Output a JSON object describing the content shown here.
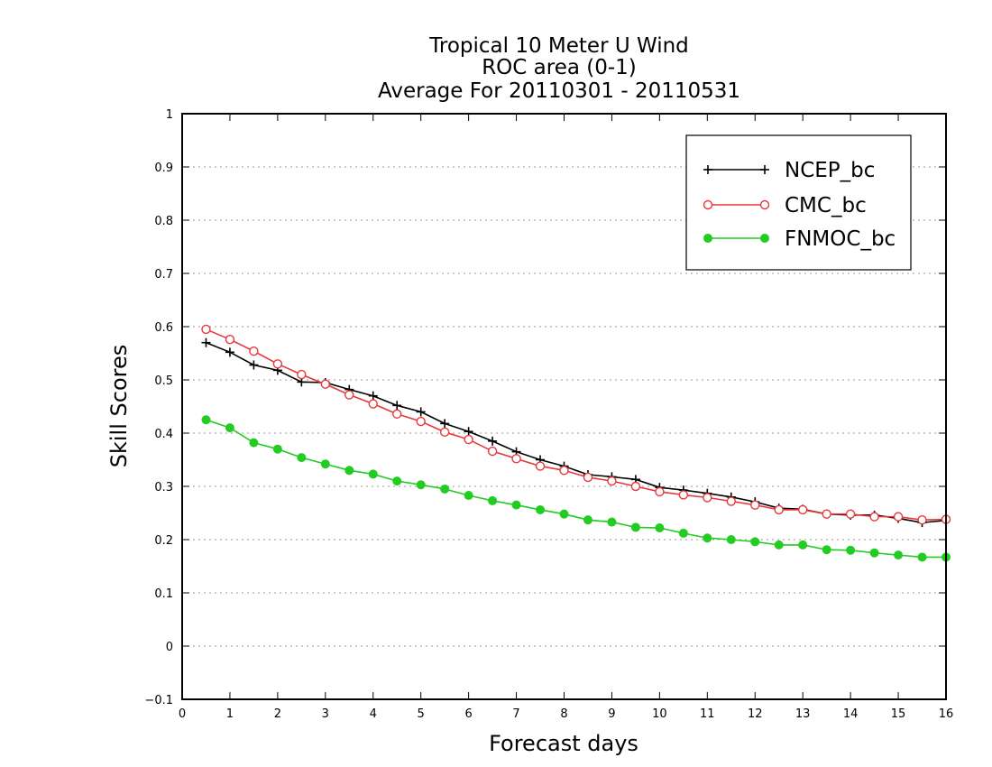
{
  "chart_data": {
    "type": "line",
    "title": [
      "Tropical 10 Meter U Wind",
      "ROC area (0-1)",
      "Average For 20110301 - 20110531"
    ],
    "xlabel": "Forecast days",
    "ylabel": "Skill Scores",
    "xlim": [
      0,
      16
    ],
    "ylim": [
      -0.1,
      1
    ],
    "xticks": [
      "0",
      "1",
      "2",
      "3",
      "4",
      "5",
      "6",
      "7",
      "8",
      "9",
      "10",
      "11",
      "12",
      "13",
      "14",
      "15",
      "16"
    ],
    "yticks": [
      "−0.1",
      "0",
      "0.1",
      "0.2",
      "0.3",
      "0.4",
      "0.5",
      "0.6",
      "0.7",
      "0.8",
      "0.9",
      "1"
    ],
    "grid": "horizontal-dotted",
    "legend_position": "top-right",
    "x": [
      0.5,
      1,
      1.5,
      2,
      2.5,
      3,
      3.5,
      4,
      4.5,
      5,
      5.5,
      6,
      6.5,
      7,
      7.5,
      8,
      8.5,
      9,
      9.5,
      10,
      10.5,
      11,
      11.5,
      12,
      12.5,
      13,
      13.5,
      14,
      14.5,
      15,
      15.5,
      16
    ],
    "series": [
      {
        "name": "NCEP_bc",
        "color": "#000000",
        "marker": "plus",
        "values": [
          0.57,
          0.552,
          0.528,
          0.518,
          0.496,
          0.495,
          0.482,
          0.47,
          0.452,
          0.44,
          0.418,
          0.403,
          0.385,
          0.365,
          0.35,
          0.338,
          0.322,
          0.318,
          0.313,
          0.298,
          0.293,
          0.287,
          0.28,
          0.271,
          0.259,
          0.257,
          0.248,
          0.246,
          0.246,
          0.24,
          0.232,
          0.236
        ]
      },
      {
        "name": "CMC_bc",
        "color": "#e8383c",
        "marker": "open-circle",
        "values": [
          0.595,
          0.576,
          0.554,
          0.53,
          0.51,
          0.492,
          0.472,
          0.455,
          0.436,
          0.422,
          0.402,
          0.388,
          0.366,
          0.352,
          0.338,
          0.33,
          0.317,
          0.31,
          0.3,
          0.29,
          0.284,
          0.279,
          0.272,
          0.265,
          0.256,
          0.256,
          0.248,
          0.248,
          0.243,
          0.243,
          0.237,
          0.238
        ]
      },
      {
        "name": "FNMOC_bc",
        "color": "#22cc22",
        "marker": "filled-circle",
        "values": [
          0.425,
          0.41,
          0.382,
          0.37,
          0.354,
          0.342,
          0.33,
          0.323,
          0.31,
          0.303,
          0.295,
          0.283,
          0.273,
          0.265,
          0.256,
          0.248,
          0.237,
          0.233,
          0.223,
          0.222,
          0.212,
          0.203,
          0.2,
          0.196,
          0.19,
          0.19,
          0.181,
          0.18,
          0.175,
          0.171,
          0.167,
          0.167
        ]
      }
    ]
  }
}
